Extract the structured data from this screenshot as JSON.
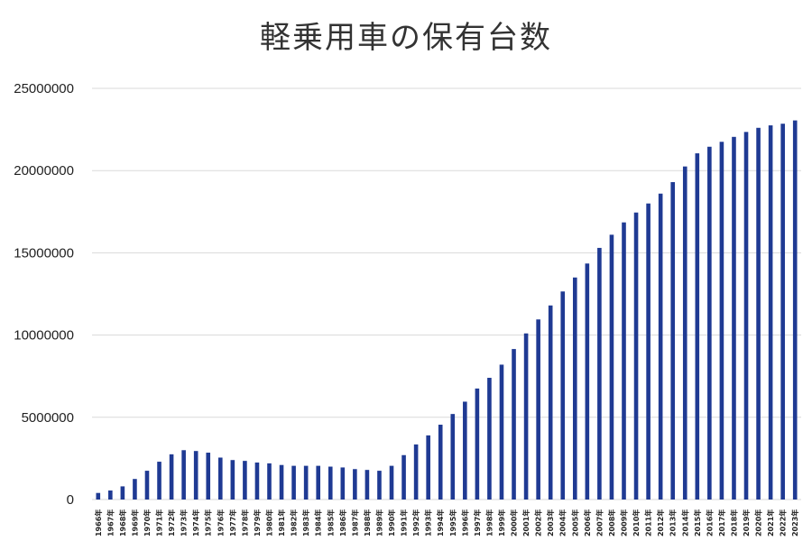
{
  "chart_data": {
    "type": "bar",
    "title": "軽乗用車の保有台数",
    "xlabel": "",
    "ylabel": "",
    "ylim": [
      0,
      25000000
    ],
    "yticks": [
      0,
      5000000,
      10000000,
      15000000,
      20000000,
      25000000
    ],
    "ytick_labels": [
      "0",
      "5000000",
      "10000000",
      "15000000",
      "20000000",
      "25000000"
    ],
    "grid": true,
    "bar_color": "#1f3a93",
    "categories": [
      "1966年",
      "1967年",
      "1968年",
      "1969年",
      "1970年",
      "1971年",
      "1972年",
      "1973年",
      "1974年",
      "1975年",
      "1976年",
      "1977年",
      "1978年",
      "1979年",
      "1980年",
      "1981年",
      "1982年",
      "1983年",
      "1984年",
      "1985年",
      "1986年",
      "1987年",
      "1988年",
      "1989年",
      "1990年",
      "1991年",
      "1992年",
      "1993年",
      "1994年",
      "1995年",
      "1996年",
      "1997年",
      "1998年",
      "1999年",
      "2000年",
      "2001年",
      "2002年",
      "2003年",
      "2004年",
      "2005年",
      "2006年",
      "2007年",
      "2008年",
      "2009年",
      "2010年",
      "2011年",
      "2012年",
      "2013年",
      "2014年",
      "2015年",
      "2016年",
      "2017年",
      "2018年",
      "2019年",
      "2020年",
      "2021年",
      "2022年",
      "2023年"
    ],
    "values": [
      400000,
      550000,
      800000,
      1250000,
      1750000,
      2300000,
      2750000,
      3000000,
      2950000,
      2850000,
      2550000,
      2400000,
      2350000,
      2250000,
      2200000,
      2100000,
      2050000,
      2050000,
      2050000,
      2000000,
      1950000,
      1850000,
      1800000,
      1750000,
      2050000,
      2700000,
      3350000,
      3900000,
      4550000,
      5200000,
      5950000,
      6750000,
      7400000,
      8200000,
      9150000,
      10100000,
      10950000,
      11800000,
      12650000,
      13500000,
      14350000,
      15300000,
      16100000,
      16850000,
      17450000,
      18000000,
      18600000,
      19300000,
      20250000,
      21050000,
      21450000,
      21750000,
      22050000,
      22350000,
      22600000,
      22750000,
      22850000,
      23050000
    ]
  }
}
